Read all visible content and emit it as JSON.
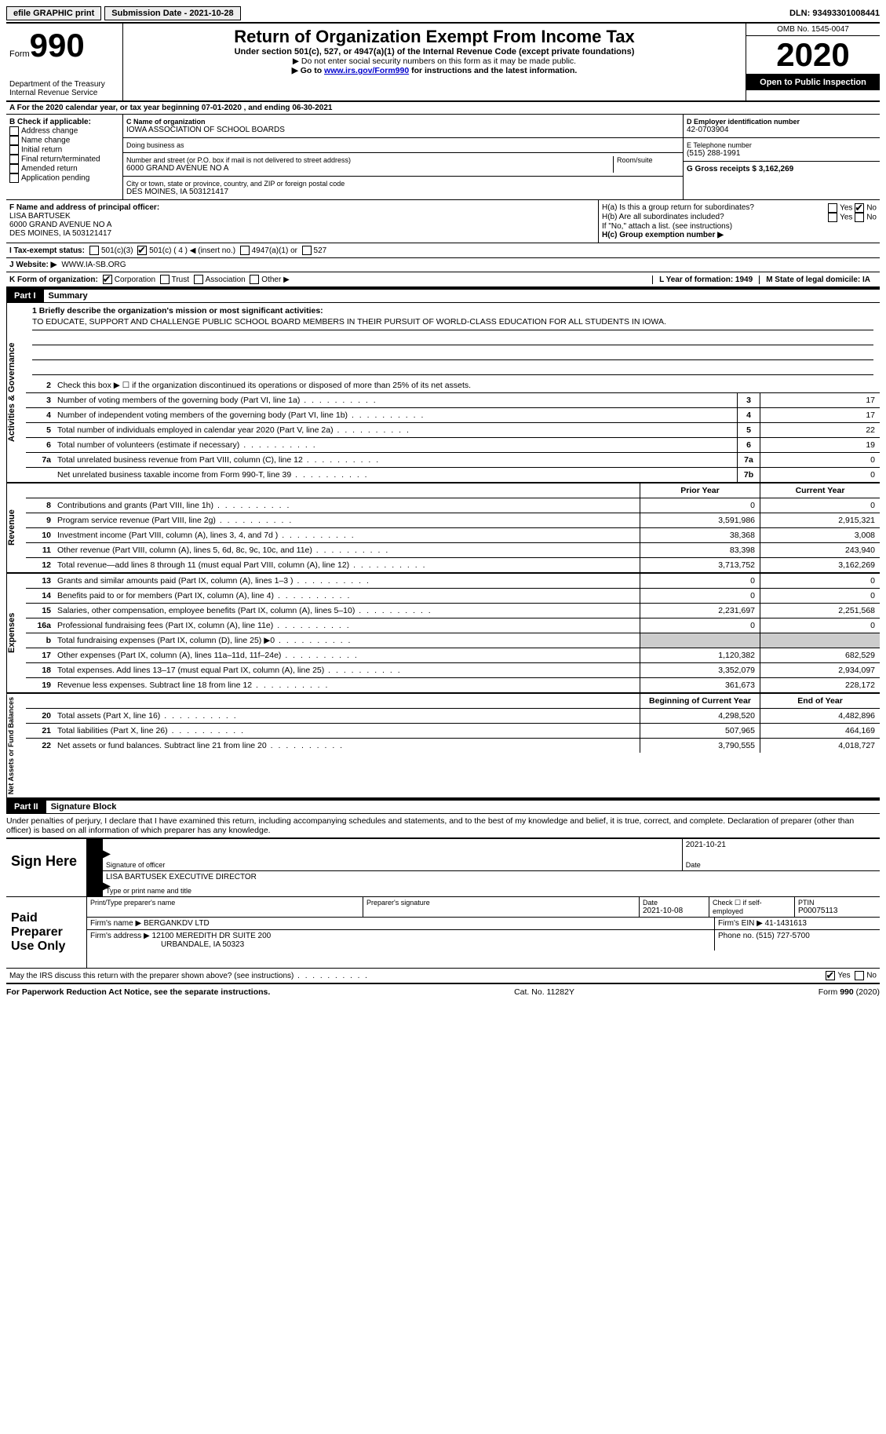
{
  "topbar": {
    "efile_label": "efile GRAPHIC print",
    "submission_label": "Submission Date - 2021-10-28",
    "dln_label": "DLN: 93493301008441"
  },
  "header": {
    "form_label": "Form",
    "form_number": "990",
    "dept": "Department of the Treasury\nInternal Revenue Service",
    "title": "Return of Organization Exempt From Income Tax",
    "subtitle": "Under section 501(c), 527, or 4947(a)(1) of the Internal Revenue Code (except private foundations)",
    "note1": "Do not enter social security numbers on this form as it may be made public.",
    "note2_prefix": "Go to ",
    "note2_link": "www.irs.gov/Form990",
    "note2_suffix": " for instructions and the latest information.",
    "omb": "OMB No. 1545-0047",
    "year": "2020",
    "inspection": "Open to Public Inspection"
  },
  "period_line": "A For the 2020 calendar year, or tax year beginning 07-01-2020   , and ending 06-30-2021",
  "boxB": {
    "title": "B Check if applicable:",
    "items": [
      "Address change",
      "Name change",
      "Initial return",
      "Final return/terminated",
      "Amended return",
      "Application pending"
    ]
  },
  "boxC": {
    "name_label": "C Name of organization",
    "name": "IOWA ASSOCIATION OF SCHOOL BOARDS",
    "dba_label": "Doing business as",
    "street_label": "Number and street (or P.O. box if mail is not delivered to street address)",
    "room_label": "Room/suite",
    "street": "6000 GRAND AVENUE NO A",
    "city_label": "City or town, state or province, country, and ZIP or foreign postal code",
    "city": "DES MOINES, IA  503121417"
  },
  "boxD": {
    "ein_label": "D Employer identification number",
    "ein": "42-0703904",
    "phone_label": "E Telephone number",
    "phone": "(515) 288-1991",
    "gross_label": "G Gross receipts $ 3,162,269"
  },
  "boxF": {
    "label": "F Name and address of principal officer:",
    "name": "LISA BARTUSEK",
    "addr1": "6000 GRAND AVENUE NO A",
    "addr2": "DES MOINES, IA  503121417"
  },
  "boxH": {
    "a_label": "H(a)  Is this a group return for subordinates?",
    "b_label": "H(b)  Are all subordinates included?",
    "b_note": "If \"No,\" attach a list. (see instructions)",
    "c_label": "H(c)  Group exemption number ▶",
    "yes": "Yes",
    "no": "No"
  },
  "boxI": {
    "label": "I  Tax-exempt status:",
    "opt1": "501(c)(3)",
    "opt2a": "501(c) ( 4 ) ◀ (insert no.)",
    "opt3": "4947(a)(1) or",
    "opt4": "527"
  },
  "boxJ": {
    "label": "J  Website: ▶",
    "value": "WWW.IA-SB.ORG"
  },
  "boxK": {
    "label": "K Form of organization:",
    "opts": [
      "Corporation",
      "Trust",
      "Association",
      "Other ▶"
    ]
  },
  "boxL": {
    "label": "L Year of formation: 1949"
  },
  "boxM": {
    "label": "M State of legal domicile: IA"
  },
  "part1": {
    "header": "Part I",
    "title": "Summary",
    "q1_label": "1  Briefly describe the organization's mission or most significant activities:",
    "q1_text": "TO EDUCATE, SUPPORT AND CHALLENGE PUBLIC SCHOOL BOARD MEMBERS IN THEIR PURSUIT OF WORLD-CLASS EDUCATION FOR ALL STUDENTS IN IOWA.",
    "q2": "Check this box ▶ ☐  if the organization discontinued its operations or disposed of more than 25% of its net assets.",
    "gov_lines": [
      {
        "n": "3",
        "d": "Number of voting members of the governing body (Part VI, line 1a)",
        "box": "3",
        "v": "17"
      },
      {
        "n": "4",
        "d": "Number of independent voting members of the governing body (Part VI, line 1b)",
        "box": "4",
        "v": "17"
      },
      {
        "n": "5",
        "d": "Total number of individuals employed in calendar year 2020 (Part V, line 2a)",
        "box": "5",
        "v": "22"
      },
      {
        "n": "6",
        "d": "Total number of volunteers (estimate if necessary)",
        "box": "6",
        "v": "19"
      },
      {
        "n": "7a",
        "d": "Total unrelated business revenue from Part VIII, column (C), line 12",
        "box": "7a",
        "v": "0"
      },
      {
        "n": "",
        "d": "Net unrelated business taxable income from Form 990-T, line 39",
        "box": "7b",
        "v": "0"
      }
    ],
    "col_prior": "Prior Year",
    "col_current": "Current Year",
    "rev_lines": [
      {
        "n": "8",
        "d": "Contributions and grants (Part VIII, line 1h)",
        "p": "0",
        "c": "0"
      },
      {
        "n": "9",
        "d": "Program service revenue (Part VIII, line 2g)",
        "p": "3,591,986",
        "c": "2,915,321"
      },
      {
        "n": "10",
        "d": "Investment income (Part VIII, column (A), lines 3, 4, and 7d )",
        "p": "38,368",
        "c": "3,008"
      },
      {
        "n": "11",
        "d": "Other revenue (Part VIII, column (A), lines 5, 6d, 8c, 9c, 10c, and 11e)",
        "p": "83,398",
        "c": "243,940"
      },
      {
        "n": "12",
        "d": "Total revenue—add lines 8 through 11 (must equal Part VIII, column (A), line 12)",
        "p": "3,713,752",
        "c": "3,162,269"
      }
    ],
    "exp_lines": [
      {
        "n": "13",
        "d": "Grants and similar amounts paid (Part IX, column (A), lines 1–3 )",
        "p": "0",
        "c": "0"
      },
      {
        "n": "14",
        "d": "Benefits paid to or for members (Part IX, column (A), line 4)",
        "p": "0",
        "c": "0"
      },
      {
        "n": "15",
        "d": "Salaries, other compensation, employee benefits (Part IX, column (A), lines 5–10)",
        "p": "2,231,697",
        "c": "2,251,568"
      },
      {
        "n": "16a",
        "d": "Professional fundraising fees (Part IX, column (A), line 11e)",
        "p": "0",
        "c": "0"
      },
      {
        "n": "b",
        "d": "Total fundraising expenses (Part IX, column (D), line 25) ▶0",
        "p": "",
        "c": "",
        "shade": true
      },
      {
        "n": "17",
        "d": "Other expenses (Part IX, column (A), lines 11a–11d, 11f–24e)",
        "p": "1,120,382",
        "c": "682,529"
      },
      {
        "n": "18",
        "d": "Total expenses. Add lines 13–17 (must equal Part IX, column (A), line 25)",
        "p": "3,352,079",
        "c": "2,934,097"
      },
      {
        "n": "19",
        "d": "Revenue less expenses. Subtract line 18 from line 12",
        "p": "361,673",
        "c": "228,172"
      }
    ],
    "col_begin": "Beginning of Current Year",
    "col_end": "End of Year",
    "net_lines": [
      {
        "n": "20",
        "d": "Total assets (Part X, line 16)",
        "p": "4,298,520",
        "c": "4,482,896"
      },
      {
        "n": "21",
        "d": "Total liabilities (Part X, line 26)",
        "p": "507,965",
        "c": "464,169"
      },
      {
        "n": "22",
        "d": "Net assets or fund balances. Subtract line 21 from line 20",
        "p": "3,790,555",
        "c": "4,018,727"
      }
    ],
    "vtab_gov": "Activities & Governance",
    "vtab_rev": "Revenue",
    "vtab_exp": "Expenses",
    "vtab_net": "Net Assets or Fund Balances"
  },
  "part2": {
    "header": "Part II",
    "title": "Signature Block",
    "penalty": "Under penalties of perjury, I declare that I have examined this return, including accompanying schedules and statements, and to the best of my knowledge and belief, it is true, correct, and complete. Declaration of preparer (other than officer) is based on all information of which preparer has any knowledge.",
    "sign_here": "Sign Here",
    "sig_officer_label": "Signature of officer",
    "sig_date": "2021-10-21",
    "date_label": "Date",
    "officer_name": "LISA BARTUSEK  EXECUTIVE DIRECTOR",
    "officer_name_label": "Type or print name and title",
    "paid_label": "Paid Preparer Use Only",
    "prep_name_label": "Print/Type preparer's name",
    "prep_sig_label": "Preparer's signature",
    "prep_date_label": "Date",
    "prep_date": "2021-10-08",
    "self_emp_label": "Check ☐ if self-employed",
    "ptin_label": "PTIN",
    "ptin": "P00075113",
    "firm_name_label": "Firm's name   ▶",
    "firm_name": "BERGANKDV LTD",
    "firm_ein_label": "Firm's EIN ▶",
    "firm_ein": "41-1431613",
    "firm_addr_label": "Firm's address ▶",
    "firm_addr1": "12100 MEREDITH DR SUITE 200",
    "firm_addr2": "URBANDALE, IA  50323",
    "firm_phone_label": "Phone no.",
    "firm_phone": "(515) 727-5700",
    "discuss": "May the IRS discuss this return with the preparer shown above? (see instructions)",
    "yes": "Yes",
    "no": "No"
  },
  "footer": {
    "paperwork": "For Paperwork Reduction Act Notice, see the separate instructions.",
    "cat": "Cat. No. 11282Y",
    "form": "Form 990 (2020)"
  }
}
